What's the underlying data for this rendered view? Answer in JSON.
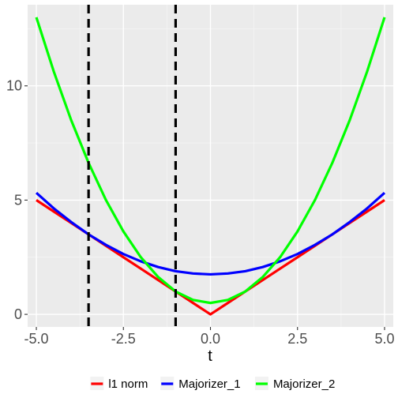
{
  "chart_data": {
    "type": "line",
    "xlabel": "t",
    "ylabel": "",
    "xlim": [
      -5.25,
      5.25
    ],
    "ylim": [
      -0.55,
      13.55
    ],
    "x_ticks": [
      -5.0,
      -2.5,
      0.0,
      2.5,
      5.0
    ],
    "x_tick_labels": [
      "-5.0",
      "-2.5",
      "0.0",
      "2.5",
      "5.0"
    ],
    "y_ticks": [
      0,
      5,
      10
    ],
    "y_tick_labels": [
      "0",
      "5",
      "10"
    ],
    "grid": true,
    "legend_position": "bottom",
    "vlines": [
      {
        "x": -3.5,
        "style": "dashed",
        "color": "#000000"
      },
      {
        "x": -1.0,
        "style": "dashed",
        "color": "#000000"
      }
    ],
    "series": [
      {
        "name": "l1 norm",
        "color": "#ff0000",
        "x": [
          -5.0,
          -4.5,
          -4.0,
          -3.5,
          -3.0,
          -2.5,
          -2.0,
          -1.5,
          -1.0,
          -0.5,
          0.0,
          0.5,
          1.0,
          1.5,
          2.0,
          2.5,
          3.0,
          3.5,
          4.0,
          4.5,
          5.0
        ],
        "y": [
          5.0,
          4.5,
          4.0,
          3.5,
          3.0,
          2.5,
          2.0,
          1.5,
          1.0,
          0.5,
          0.0,
          0.5,
          1.0,
          1.5,
          2.0,
          2.5,
          3.0,
          3.5,
          4.0,
          4.5,
          5.0
        ]
      },
      {
        "name": "Majorizer_1",
        "color": "#0000ff",
        "x": [
          -5.0,
          -4.5,
          -4.0,
          -3.5,
          -3.0,
          -2.5,
          -2.0,
          -1.5,
          -1.0,
          -0.5,
          0.0,
          0.5,
          1.0,
          1.5,
          2.0,
          2.5,
          3.0,
          3.5,
          4.0,
          4.5,
          5.0
        ],
        "y": [
          5.32,
          4.64,
          4.04,
          3.5,
          3.04,
          2.64,
          2.32,
          2.07,
          1.89,
          1.79,
          1.75,
          1.79,
          1.89,
          2.07,
          2.32,
          2.64,
          3.04,
          3.5,
          4.04,
          4.64,
          5.32
        ]
      },
      {
        "name": "Majorizer_2",
        "color": "#00ff00",
        "x": [
          -5.0,
          -4.5,
          -4.0,
          -3.5,
          -3.0,
          -2.5,
          -2.0,
          -1.5,
          -1.0,
          -0.5,
          0.0,
          0.5,
          1.0,
          1.5,
          2.0,
          2.5,
          3.0,
          3.5,
          4.0,
          4.5,
          5.0
        ],
        "y": [
          13.0,
          10.63,
          8.5,
          6.63,
          5.0,
          3.63,
          2.5,
          1.63,
          1.0,
          0.63,
          0.5,
          0.63,
          1.0,
          1.63,
          2.5,
          3.63,
          5.0,
          6.63,
          8.5,
          10.63,
          13.0
        ]
      }
    ]
  }
}
